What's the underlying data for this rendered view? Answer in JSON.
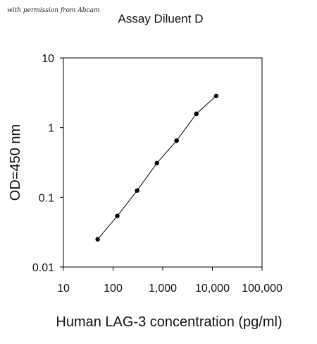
{
  "watermark": "with permission from Abcam",
  "chart_data": {
    "type": "line",
    "title": "Assay Diluent D",
    "xlabel": "Human LAG-3 concentration (pg/ml)",
    "ylabel": "OD=450 nm",
    "x_scale": "log",
    "y_scale": "log",
    "xlim": [
      10,
      100000
    ],
    "ylim": [
      0.01,
      10
    ],
    "x_ticks": [
      10,
      100,
      1000,
      10000,
      100000
    ],
    "x_tick_labels": [
      "10",
      "100",
      "1,000",
      "10,000",
      "100,000"
    ],
    "y_ticks": [
      0.01,
      0.1,
      1,
      10
    ],
    "y_tick_labels": [
      "0.01",
      "0.1",
      "1",
      "10"
    ],
    "grid": false,
    "series": [
      {
        "x": [
          49,
          122,
          305,
          763,
          1906,
          4766,
          11914
        ],
        "y": [
          0.025,
          0.054,
          0.125,
          0.31,
          0.65,
          1.58,
          2.85
        ],
        "color": "#000000"
      }
    ]
  }
}
